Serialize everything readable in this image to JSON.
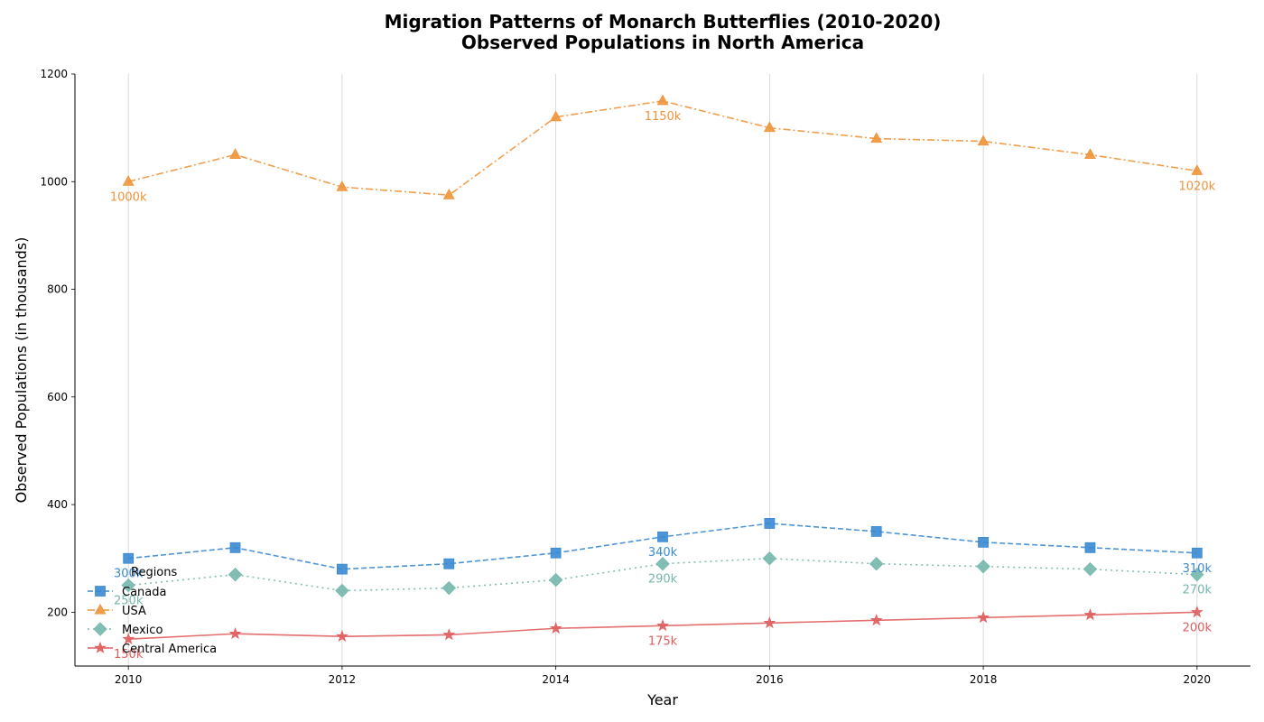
{
  "chart_data": {
    "type": "line",
    "title_line1": "Migration Patterns of Monarch Butterflies (2010-2020)",
    "title_line2": "Observed Populations in North America",
    "xlabel": "Year",
    "ylabel": "Observed Populations (in thousands)",
    "x": [
      2010,
      2011,
      2012,
      2013,
      2014,
      2015,
      2016,
      2017,
      2018,
      2019,
      2020
    ],
    "xlim": [
      2009.5,
      2020.5
    ],
    "ylim": [
      100,
      1200
    ],
    "x_ticks": [
      "2010",
      "2012",
      "2014",
      "2016",
      "2018",
      "2020"
    ],
    "y_ticks": [
      "200",
      "400",
      "600",
      "800",
      "1000",
      "1200"
    ],
    "grid": "vertical",
    "legend": {
      "title": "Regions",
      "placement": "lower-left"
    },
    "series": [
      {
        "name": "Canada",
        "color": "#3a8ad1",
        "marker": "square",
        "linestyle": "dashed",
        "values": [
          300,
          320,
          280,
          290,
          310,
          340,
          365,
          350,
          330,
          320,
          310
        ],
        "annotations": [
          {
            "x": 2010,
            "y": 300,
            "text": "300k"
          },
          {
            "x": 2015,
            "y": 340,
            "text": "340k"
          },
          {
            "x": 2020,
            "y": 310,
            "text": "310k"
          }
        ]
      },
      {
        "name": "USA",
        "color": "#f0933a",
        "marker": "triangle",
        "linestyle": "dashdot",
        "values": [
          1000,
          1050,
          990,
          975,
          1120,
          1150,
          1100,
          1080,
          1075,
          1050,
          1020
        ],
        "annotations": [
          {
            "x": 2010,
            "y": 1000,
            "text": "1000k"
          },
          {
            "x": 2015,
            "y": 1150,
            "text": "1150k"
          },
          {
            "x": 2020,
            "y": 1020,
            "text": "1020k"
          }
        ]
      },
      {
        "name": "Mexico",
        "color": "#76b7ad",
        "marker": "diamond",
        "linestyle": "dotted",
        "values": [
          250,
          270,
          240,
          245,
          260,
          290,
          300,
          290,
          285,
          280,
          270
        ],
        "annotations": [
          {
            "x": 2010,
            "y": 250,
            "text": "250k"
          },
          {
            "x": 2015,
            "y": 290,
            "text": "290k"
          },
          {
            "x": 2020,
            "y": 270,
            "text": "270k"
          }
        ]
      },
      {
        "name": "Central America",
        "color": "#e05e5e",
        "marker": "star",
        "linestyle": "solid",
        "values": [
          150,
          160,
          155,
          158,
          170,
          175,
          180,
          185,
          190,
          195,
          200
        ],
        "annotations": [
          {
            "x": 2010,
            "y": 150,
            "text": "150k"
          },
          {
            "x": 2015,
            "y": 175,
            "text": "175k"
          },
          {
            "x": 2020,
            "y": 200,
            "text": "200k"
          }
        ]
      }
    ]
  }
}
